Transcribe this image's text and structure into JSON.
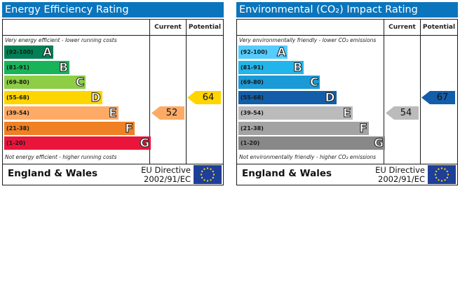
{
  "chart_data": [
    {
      "type": "bar",
      "title": "Energy Efficiency Rating",
      "columns": [
        "Current",
        "Potential"
      ],
      "top_caption": "Very energy efficient - lower running costs",
      "bottom_caption": "Not energy efficient - higher running costs",
      "bands": [
        {
          "range": "(92-100)",
          "letter": "A",
          "color": "#008054"
        },
        {
          "range": "(81-91)",
          "letter": "B",
          "color": "#19b459"
        },
        {
          "range": "(69-80)",
          "letter": "C",
          "color": "#8dce46"
        },
        {
          "range": "(55-68)",
          "letter": "D",
          "color": "#ffd500"
        },
        {
          "range": "(39-54)",
          "letter": "E",
          "color": "#fcaa65"
        },
        {
          "range": "(21-38)",
          "letter": "F",
          "color": "#ef8023"
        },
        {
          "range": "(1-20)",
          "letter": "G",
          "color": "#e9153b"
        }
      ],
      "current": {
        "value": 52,
        "color": "#fcaa65"
      },
      "potential": {
        "value": 64,
        "color": "#ffd500"
      },
      "footer_country": "England & Wales",
      "footer_directive_line1": "EU Directive",
      "footer_directive_line2": "2002/91/EC"
    },
    {
      "type": "bar",
      "title": "Environmental (CO₂) Impact Rating",
      "columns": [
        "Current",
        "Potential"
      ],
      "top_caption": "Very environmentally friendly - lower CO₂ emissions",
      "bottom_caption": "Not environmentally friendly - higher CO₂ emissions",
      "bands": [
        {
          "range": "(92-100)",
          "letter": "A",
          "color": "#55ccff"
        },
        {
          "range": "(81-91)",
          "letter": "B",
          "color": "#22b5eb"
        },
        {
          "range": "(69-80)",
          "letter": "C",
          "color": "#1a9ad6"
        },
        {
          "range": "(55-68)",
          "letter": "D",
          "color": "#135ea9"
        },
        {
          "range": "(39-54)",
          "letter": "E",
          "color": "#bbbbbb"
        },
        {
          "range": "(21-38)",
          "letter": "F",
          "color": "#a3a3a3"
        },
        {
          "range": "(1-20)",
          "letter": "G",
          "color": "#888888"
        }
      ],
      "current": {
        "value": 54,
        "color": "#bbbbbb"
      },
      "potential": {
        "value": 67,
        "color": "#135ea9"
      },
      "footer_country": "England & Wales",
      "footer_directive_line1": "EU Directive",
      "footer_directive_line2": "2002/91/EC"
    }
  ]
}
